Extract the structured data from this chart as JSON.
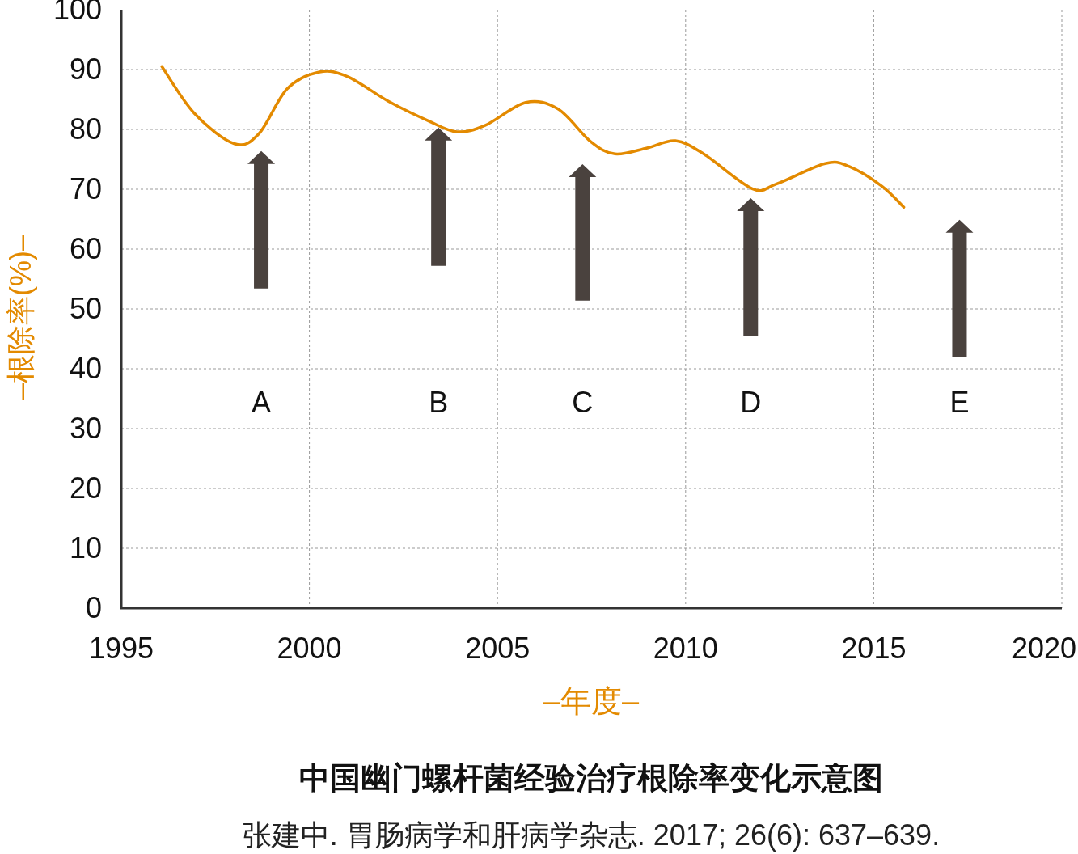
{
  "chart_data": {
    "type": "line",
    "title": "中国幽门螺杆菌经验治疗根除率变化示意图",
    "xlabel": "–年度–",
    "ylabel": "–根除率(%)–",
    "x": [
      1996.08,
      1996.94,
      1998.01,
      1998.66,
      1999.41,
      2000.27,
      2001.02,
      2002.1,
      2003.17,
      2003.92,
      2004.68,
      2005.75,
      2006.61,
      2007.47,
      2008.12,
      2008.98,
      2009.73,
      2010.48,
      2011.77,
      2012.42,
      2013.71,
      2014.35,
      2015.22,
      2015.8
    ],
    "series": [
      {
        "color": "#e38a00",
        "values": [
          90.5,
          82.7,
          77.6,
          79.3,
          86.8,
          89.6,
          88.8,
          84.7,
          81.4,
          79.6,
          80.7,
          84.5,
          83.4,
          78.0,
          75.9,
          76.9,
          78.1,
          75.9,
          70.1,
          70.9,
          74.3,
          73.8,
          70.5,
          67.0
        ]
      }
    ],
    "xlim": [
      1995,
      2020
    ],
    "ylim": [
      0,
      100
    ],
    "xticks": [
      1995,
      2000,
      2005,
      2010,
      2015,
      2020
    ],
    "yticks": [
      0,
      10,
      20,
      30,
      40,
      50,
      60,
      70,
      80,
      90,
      100
    ],
    "grid": true,
    "marker": "none",
    "line_style": "solid",
    "annotations": [
      "A",
      "B",
      "C",
      "D",
      "E",
      "张建中. 胃肠病学和肝病学杂志. 2017; 26(6): 637–639."
    ]
  }
}
